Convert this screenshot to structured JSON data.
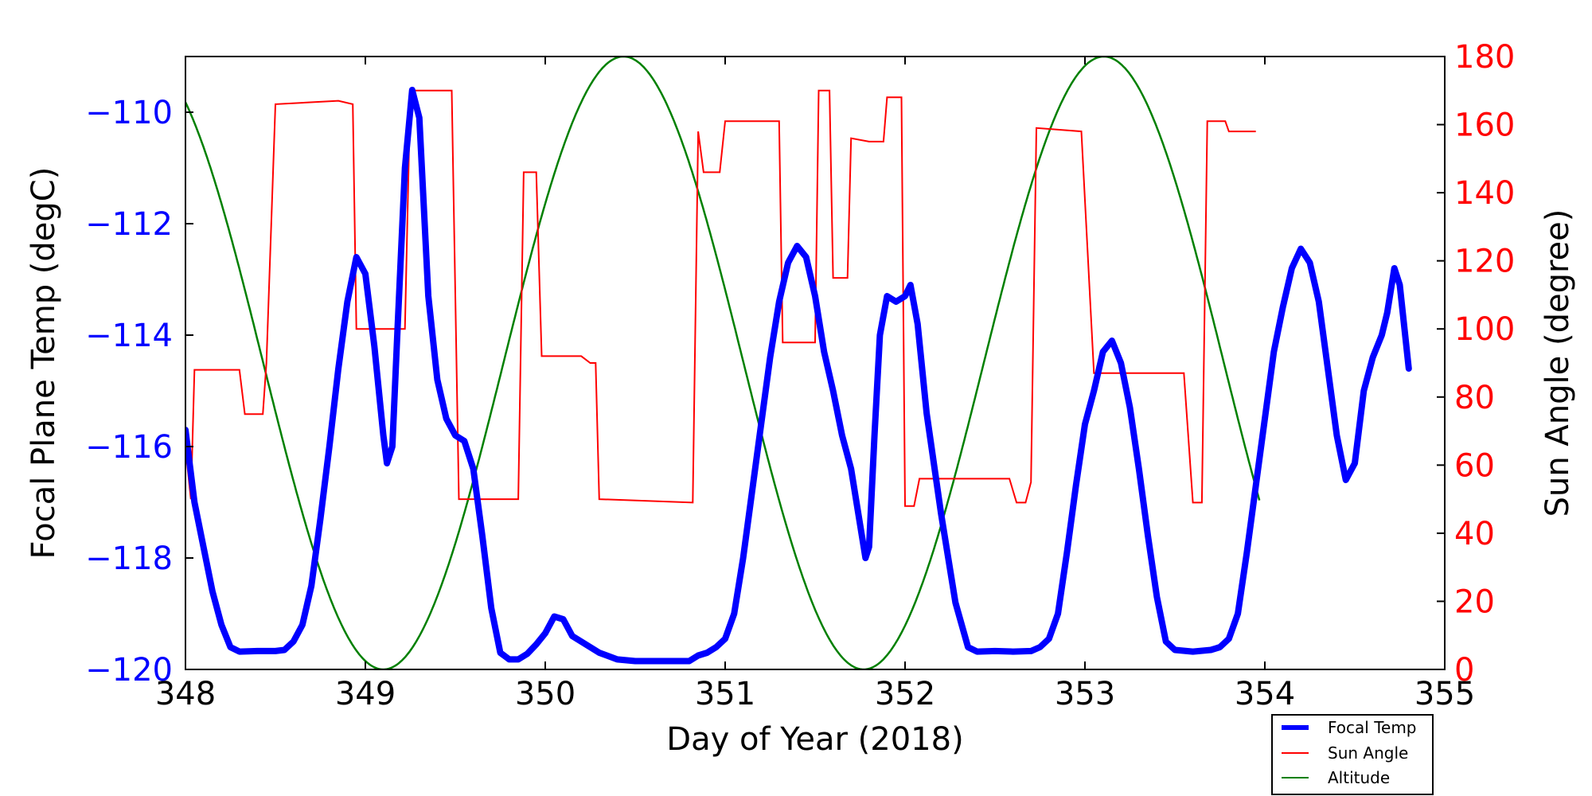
{
  "chart_data": {
    "type": "line",
    "title": "",
    "xlabel": "Day of Year (2018)",
    "ylabel_left": "Focal Plane Temp (degC)",
    "ylabel_right": "Sun Angle (degree)",
    "xlim": [
      348,
      355
    ],
    "ylim_left": [
      -120,
      -109
    ],
    "ylim_right": [
      0,
      180
    ],
    "x_ticks": [
      "348",
      "349",
      "350",
      "351",
      "352",
      "353",
      "354",
      "355"
    ],
    "y_ticks_left": [
      "−120",
      "−118",
      "−116",
      "−114",
      "−112",
      "−110"
    ],
    "y_ticks_right": [
      "0",
      "20",
      "40",
      "60",
      "80",
      "100",
      "120",
      "140",
      "160",
      "180"
    ],
    "grid": false,
    "legend_position": "bottom-right",
    "colors": {
      "focal_temp": "#0000ff",
      "sun_angle": "#ff0000",
      "altitude": "#008000",
      "left_axis": "#0000ff",
      "right_axis": "#ff0000"
    },
    "series": [
      {
        "name": "Focal Temp",
        "axis": "left",
        "points": [
          [
            348.0,
            -115.7
          ],
          [
            348.05,
            -117.0
          ],
          [
            348.1,
            -117.8
          ],
          [
            348.15,
            -118.6
          ],
          [
            348.2,
            -119.2
          ],
          [
            348.25,
            -119.6
          ],
          [
            348.3,
            -119.68
          ],
          [
            348.4,
            -119.67
          ],
          [
            348.5,
            -119.67
          ],
          [
            348.55,
            -119.65
          ],
          [
            348.6,
            -119.5
          ],
          [
            348.65,
            -119.2
          ],
          [
            348.7,
            -118.5
          ],
          [
            348.75,
            -117.3
          ],
          [
            348.8,
            -116.0
          ],
          [
            348.85,
            -114.6
          ],
          [
            348.9,
            -113.4
          ],
          [
            348.95,
            -112.6
          ],
          [
            349.0,
            -112.9
          ],
          [
            349.05,
            -114.2
          ],
          [
            349.1,
            -115.8
          ],
          [
            349.12,
            -116.3
          ],
          [
            349.15,
            -116.0
          ],
          [
            349.18,
            -113.8
          ],
          [
            349.22,
            -111.0
          ],
          [
            349.26,
            -109.6
          ],
          [
            349.3,
            -110.1
          ],
          [
            349.35,
            -113.3
          ],
          [
            349.4,
            -114.8
          ],
          [
            349.45,
            -115.5
          ],
          [
            349.5,
            -115.8
          ],
          [
            349.55,
            -115.9
          ],
          [
            349.6,
            -116.4
          ],
          [
            349.65,
            -117.6
          ],
          [
            349.7,
            -118.9
          ],
          [
            349.75,
            -119.7
          ],
          [
            349.8,
            -119.82
          ],
          [
            349.85,
            -119.82
          ],
          [
            349.9,
            -119.72
          ],
          [
            349.95,
            -119.55
          ],
          [
            350.0,
            -119.35
          ],
          [
            350.05,
            -119.05
          ],
          [
            350.1,
            -119.1
          ],
          [
            350.15,
            -119.4
          ],
          [
            350.2,
            -119.5
          ],
          [
            350.3,
            -119.7
          ],
          [
            350.4,
            -119.82
          ],
          [
            350.5,
            -119.85
          ],
          [
            350.6,
            -119.85
          ],
          [
            350.7,
            -119.85
          ],
          [
            350.8,
            -119.85
          ],
          [
            350.85,
            -119.75
          ],
          [
            350.9,
            -119.7
          ],
          [
            350.95,
            -119.6
          ],
          [
            351.0,
            -119.45
          ],
          [
            351.05,
            -119.0
          ],
          [
            351.1,
            -118.0
          ],
          [
            351.15,
            -116.8
          ],
          [
            351.2,
            -115.6
          ],
          [
            351.25,
            -114.4
          ],
          [
            351.3,
            -113.4
          ],
          [
            351.35,
            -112.7
          ],
          [
            351.4,
            -112.4
          ],
          [
            351.45,
            -112.6
          ],
          [
            351.5,
            -113.3
          ],
          [
            351.55,
            -114.3
          ],
          [
            351.6,
            -115.0
          ],
          [
            351.65,
            -115.8
          ],
          [
            351.7,
            -116.4
          ],
          [
            351.75,
            -117.4
          ],
          [
            351.78,
            -118.0
          ],
          [
            351.8,
            -117.8
          ],
          [
            351.83,
            -115.8
          ],
          [
            351.86,
            -114.0
          ],
          [
            351.9,
            -113.3
          ],
          [
            351.95,
            -113.4
          ],
          [
            352.0,
            -113.3
          ],
          [
            352.03,
            -113.1
          ],
          [
            352.07,
            -113.8
          ],
          [
            352.12,
            -115.4
          ],
          [
            352.2,
            -117.2
          ],
          [
            352.28,
            -118.8
          ],
          [
            352.35,
            -119.6
          ],
          [
            352.4,
            -119.68
          ],
          [
            352.5,
            -119.67
          ],
          [
            352.6,
            -119.68
          ],
          [
            352.7,
            -119.67
          ],
          [
            352.75,
            -119.6
          ],
          [
            352.8,
            -119.45
          ],
          [
            352.85,
            -119.0
          ],
          [
            352.9,
            -117.9
          ],
          [
            352.95,
            -116.7
          ],
          [
            353.0,
            -115.6
          ],
          [
            353.05,
            -115.0
          ],
          [
            353.1,
            -114.3
          ],
          [
            353.15,
            -114.1
          ],
          [
            353.2,
            -114.5
          ],
          [
            353.25,
            -115.3
          ],
          [
            353.3,
            -116.4
          ],
          [
            353.35,
            -117.6
          ],
          [
            353.4,
            -118.7
          ],
          [
            353.45,
            -119.5
          ],
          [
            353.5,
            -119.65
          ],
          [
            353.6,
            -119.68
          ],
          [
            353.7,
            -119.65
          ],
          [
            353.75,
            -119.6
          ],
          [
            353.8,
            -119.45
          ],
          [
            353.85,
            -119.0
          ],
          [
            353.9,
            -117.9
          ],
          [
            353.95,
            -116.7
          ],
          [
            354.0,
            -115.5
          ],
          [
            354.05,
            -114.3
          ],
          [
            354.1,
            -113.5
          ],
          [
            354.15,
            -112.8
          ],
          [
            354.2,
            -112.45
          ],
          [
            354.25,
            -112.7
          ],
          [
            354.3,
            -113.4
          ],
          [
            354.35,
            -114.6
          ],
          [
            354.4,
            -115.8
          ],
          [
            354.45,
            -116.6
          ],
          [
            354.5,
            -116.3
          ],
          [
            354.55,
            -115.0
          ],
          [
            354.6,
            -114.4
          ],
          [
            354.65,
            -114.0
          ],
          [
            354.68,
            -113.6
          ],
          [
            354.72,
            -112.8
          ],
          [
            354.75,
            -113.1
          ],
          [
            354.8,
            -114.6
          ]
        ]
      },
      {
        "name": "Sun Angle",
        "axis": "right",
        "points": [
          [
            348.0,
            65
          ],
          [
            348.03,
            50
          ],
          [
            348.05,
            88
          ],
          [
            348.3,
            88
          ],
          [
            348.33,
            75
          ],
          [
            348.43,
            75
          ],
          [
            348.45,
            90
          ],
          [
            348.5,
            166
          ],
          [
            348.85,
            167
          ],
          [
            348.93,
            166
          ],
          [
            348.95,
            100
          ],
          [
            349.22,
            100
          ],
          [
            349.25,
            170
          ],
          [
            349.48,
            170
          ],
          [
            349.52,
            50
          ],
          [
            349.85,
            50
          ],
          [
            349.88,
            146
          ],
          [
            349.95,
            146
          ],
          [
            349.98,
            92
          ],
          [
            350.2,
            92
          ],
          [
            350.25,
            90
          ],
          [
            350.28,
            90
          ],
          [
            350.3,
            50
          ],
          [
            350.82,
            49
          ],
          [
            350.85,
            158
          ],
          [
            350.88,
            146
          ],
          [
            350.97,
            146
          ],
          [
            351.0,
            161
          ],
          [
            351.3,
            161
          ],
          [
            351.32,
            96
          ],
          [
            351.5,
            96
          ],
          [
            351.52,
            170
          ],
          [
            351.58,
            170
          ],
          [
            351.6,
            115
          ],
          [
            351.68,
            115
          ],
          [
            351.7,
            156
          ],
          [
            351.8,
            155
          ],
          [
            351.88,
            155
          ],
          [
            351.9,
            168
          ],
          [
            351.98,
            168
          ],
          [
            352.0,
            48
          ],
          [
            352.05,
            48
          ],
          [
            352.08,
            56
          ],
          [
            352.58,
            56
          ],
          [
            352.62,
            49
          ],
          [
            352.67,
            49
          ],
          [
            352.7,
            55
          ],
          [
            352.73,
            159
          ],
          [
            352.98,
            158
          ],
          [
            353.05,
            87
          ],
          [
            353.55,
            87
          ],
          [
            353.6,
            49
          ],
          [
            353.65,
            49
          ],
          [
            353.68,
            161
          ],
          [
            353.78,
            161
          ],
          [
            353.8,
            158
          ],
          [
            353.95,
            158
          ]
        ]
      },
      {
        "name": "Altitude",
        "axis": "right",
        "model": "sinusoid",
        "x_start": 348.0,
        "x_end": 353.97,
        "center": 90,
        "amplitude": 90,
        "period_days": 2.67,
        "first_minimum_day": 349.1
      }
    ]
  }
}
